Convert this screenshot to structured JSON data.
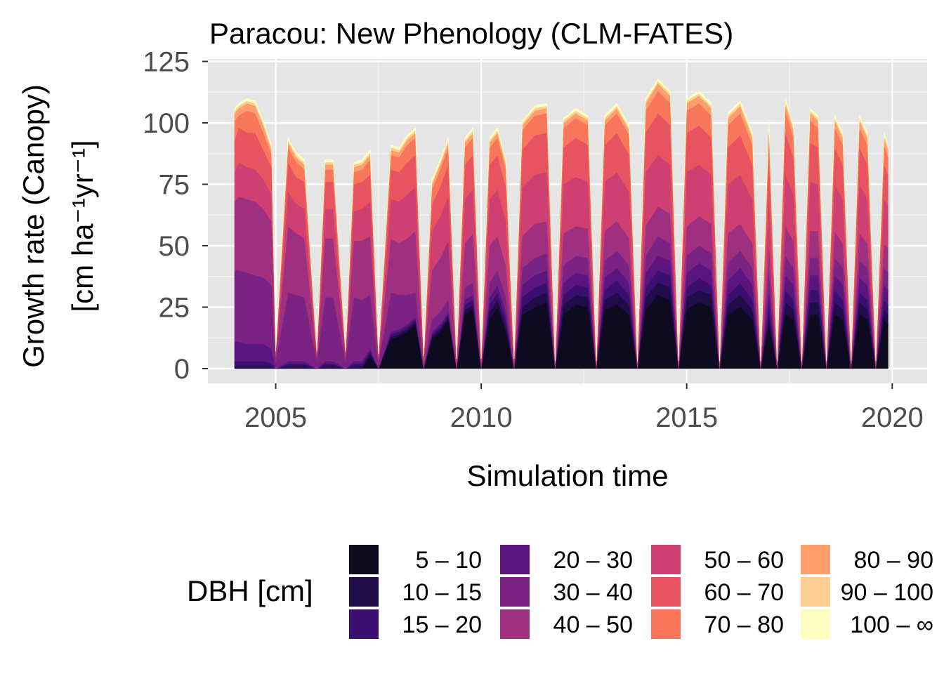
{
  "chart_data": {
    "type": "area",
    "stacked": true,
    "title": "Paracou: New Phenology (CLM-FATES)",
    "xlabel": "Simulation time",
    "ylabel_line1": "Growth rate (Canopy)",
    "ylabel_line2": "[cm ha⁻¹yr⁻¹]",
    "xlim": [
      2003.35,
      2020.85
    ],
    "ylim": [
      -6,
      126
    ],
    "x_ticks": [
      2005,
      2010,
      2015,
      2020
    ],
    "x_tick_labels": [
      "2005",
      "2010",
      "2015",
      "2020"
    ],
    "y_ticks": [
      0,
      25,
      50,
      75,
      100,
      125
    ],
    "y_tick_labels": [
      "0",
      "25",
      "50",
      "75",
      "100",
      "125"
    ],
    "grid": true,
    "background": "#e5e5e5",
    "legend_title": "DBH [cm]",
    "legend_position": "bottom",
    "x": [
      2004.0,
      2004.1,
      2004.3,
      2004.5,
      2004.7,
      2004.9,
      2005.0,
      2005.3,
      2005.5,
      2005.7,
      2006.0,
      2006.2,
      2006.4,
      2006.7,
      2006.9,
      2007.1,
      2007.3,
      2007.5,
      2007.8,
      2008.0,
      2008.2,
      2008.4,
      2008.6,
      2008.8,
      2009.0,
      2009.2,
      2009.4,
      2009.6,
      2009.8,
      2010.0,
      2010.2,
      2010.4,
      2010.6,
      2010.8,
      2011.0,
      2011.3,
      2011.6,
      2011.8,
      2012.0,
      2012.3,
      2012.6,
      2012.8,
      2013.0,
      2013.3,
      2013.6,
      2013.8,
      2014.0,
      2014.3,
      2014.6,
      2014.8,
      2015.0,
      2015.3,
      2015.6,
      2015.8,
      2016.0,
      2016.3,
      2016.6,
      2016.8,
      2017.0,
      2017.2,
      2017.4,
      2017.6,
      2017.8,
      2018.0,
      2018.2,
      2018.4,
      2018.6,
      2018.8,
      2019.0,
      2019.2,
      2019.4,
      2019.6,
      2019.8,
      2019.9
    ],
    "series": [
      {
        "name": "5 – 10",
        "color": "#0e0a20",
        "values": [
          0,
          0,
          0,
          0,
          0,
          0,
          0,
          0,
          0,
          0,
          0,
          0,
          0,
          0,
          0,
          0,
          5,
          0,
          12,
          13,
          15,
          18,
          0,
          12,
          15,
          20,
          0,
          22,
          24,
          0,
          20,
          25,
          15,
          0,
          22,
          25,
          27,
          0,
          22,
          26,
          25,
          0,
          24,
          26,
          22,
          0,
          24,
          30,
          28,
          0,
          24,
          27,
          25,
          0,
          22,
          25,
          20,
          0,
          18,
          0,
          22,
          20,
          0,
          22,
          22,
          0,
          22,
          20,
          0,
          22,
          20,
          0,
          20,
          18
        ]
      },
      {
        "name": "10 – 15",
        "color": "#1f0c48",
        "values": [
          1,
          1,
          1,
          1,
          1,
          1,
          0,
          1,
          1,
          1,
          0,
          1,
          1,
          0,
          1,
          1,
          1,
          0,
          1,
          1,
          1,
          1,
          0,
          1,
          1,
          1,
          0,
          2,
          2,
          0,
          3,
          3,
          2,
          0,
          3,
          4,
          4,
          0,
          4,
          4,
          4,
          0,
          4,
          5,
          4,
          0,
          5,
          5,
          5,
          0,
          5,
          5,
          5,
          0,
          4,
          5,
          4,
          0,
          4,
          0,
          5,
          4,
          0,
          5,
          5,
          0,
          5,
          4,
          0,
          5,
          4,
          0,
          4,
          4
        ]
      },
      {
        "name": "15 – 20",
        "color": "#3b0f70",
        "values": [
          2,
          2,
          2,
          2,
          2,
          1,
          0,
          1,
          1,
          1,
          0,
          1,
          1,
          0,
          1,
          1,
          1,
          0,
          1,
          1,
          1,
          1,
          0,
          1,
          1,
          1,
          0,
          2,
          2,
          0,
          3,
          3,
          3,
          0,
          4,
          4,
          4,
          0,
          4,
          4,
          4,
          0,
          4,
          5,
          4,
          0,
          4,
          5,
          5,
          0,
          4,
          5,
          4,
          0,
          4,
          5,
          4,
          0,
          4,
          0,
          5,
          4,
          0,
          5,
          5,
          0,
          5,
          4,
          0,
          4,
          4,
          0,
          4,
          4
        ]
      },
      {
        "name": "20 – 30",
        "color": "#5a167e",
        "values": [
          8,
          8,
          7,
          7,
          7,
          6,
          0,
          1,
          1,
          1,
          0,
          1,
          1,
          0,
          1,
          1,
          1,
          0,
          1,
          1,
          1,
          1,
          0,
          1,
          1,
          1,
          0,
          2,
          2,
          0,
          3,
          3,
          3,
          0,
          5,
          5,
          5,
          0,
          5,
          5,
          5,
          0,
          5,
          5,
          5,
          0,
          6,
          6,
          6,
          0,
          6,
          6,
          6,
          0,
          6,
          6,
          6,
          0,
          6,
          0,
          6,
          6,
          0,
          6,
          6,
          0,
          6,
          6,
          0,
          6,
          6,
          0,
          6,
          6
        ]
      },
      {
        "name": "30 – 40",
        "color": "#7b2382",
        "values": [
          29,
          29,
          29,
          28,
          27,
          26,
          3,
          28,
          27,
          26,
          3,
          26,
          26,
          3,
          26,
          25,
          22,
          2,
          16,
          14,
          12,
          10,
          1,
          5,
          5,
          5,
          0,
          5,
          5,
          0,
          6,
          6,
          6,
          0,
          7,
          7,
          7,
          0,
          7,
          7,
          7,
          0,
          7,
          7,
          7,
          0,
          7,
          8,
          7,
          0,
          7,
          7,
          7,
          0,
          7,
          7,
          7,
          0,
          8,
          0,
          8,
          7,
          0,
          7,
          7,
          0,
          7,
          7,
          0,
          7,
          7,
          0,
          7,
          7
        ]
      },
      {
        "name": "40 – 50",
        "color": "#9f2f7f",
        "values": [
          28,
          30,
          30,
          30,
          28,
          26,
          2,
          27,
          25,
          24,
          2,
          24,
          24,
          2,
          23,
          24,
          24,
          2,
          22,
          21,
          23,
          25,
          2,
          20,
          22,
          24,
          2,
          18,
          20,
          2,
          15,
          14,
          13,
          2,
          13,
          14,
          13,
          1,
          13,
          12,
          12,
          1,
          12,
          12,
          11,
          1,
          12,
          12,
          12,
          1,
          12,
          12,
          12,
          1,
          12,
          11,
          10,
          1,
          11,
          1,
          12,
          11,
          1,
          11,
          11,
          1,
          11,
          10,
          1,
          11,
          10,
          1,
          10,
          10
        ]
      },
      {
        "name": "50 – 60",
        "color": "#cd4071",
        "values": [
          12,
          14,
          13,
          13,
          12,
          11,
          1,
          14,
          12,
          12,
          1,
          12,
          12,
          1,
          12,
          13,
          14,
          1,
          16,
          17,
          18,
          18,
          1,
          16,
          17,
          18,
          1,
          18,
          18,
          1,
          19,
          19,
          18,
          1,
          20,
          20,
          20,
          1,
          20,
          20,
          19,
          1,
          20,
          20,
          19,
          1,
          22,
          21,
          20,
          1,
          22,
          21,
          20,
          1,
          20,
          20,
          18,
          1,
          20,
          1,
          21,
          19,
          1,
          20,
          19,
          1,
          19,
          18,
          1,
          20,
          18,
          1,
          18,
          17
        ]
      },
      {
        "name": "60 – 70",
        "color": "#e85362",
        "values": [
          13,
          14,
          14,
          15,
          12,
          11,
          1,
          12,
          11,
          11,
          1,
          11,
          11,
          1,
          11,
          11,
          11,
          1,
          12,
          12,
          13,
          13,
          1,
          11,
          12,
          13,
          1,
          14,
          14,
          1,
          14,
          14,
          14,
          1,
          15,
          16,
          16,
          1,
          15,
          16,
          15,
          1,
          15,
          16,
          15,
          1,
          16,
          17,
          16,
          1,
          16,
          16,
          15,
          1,
          15,
          16,
          14,
          1,
          16,
          1,
          17,
          15,
          1,
          16,
          15,
          1,
          15,
          14,
          1,
          15,
          14,
          1,
          14,
          13
        ]
      },
      {
        "name": "70 – 80",
        "color": "#f8765c",
        "values": [
          8,
          5,
          9,
          8,
          7,
          5,
          0,
          6,
          6,
          5,
          0,
          5,
          5,
          0,
          5,
          5,
          6,
          0,
          6,
          6,
          7,
          7,
          0,
          6,
          7,
          7,
          0,
          7,
          7,
          0,
          7,
          7,
          7,
          0,
          8,
          8,
          8,
          0,
          8,
          8,
          8,
          0,
          8,
          8,
          8,
          0,
          9,
          9,
          9,
          0,
          9,
          9,
          9,
          0,
          9,
          9,
          8,
          0,
          9,
          0,
          9,
          8,
          0,
          9,
          8,
          0,
          8,
          8,
          0,
          8,
          8,
          0,
          8,
          7
        ]
      },
      {
        "name": "80 – 90",
        "color": "#fe9f6d",
        "values": [
          3,
          3,
          3,
          3,
          3,
          2,
          0,
          2,
          2,
          2,
          0,
          2,
          2,
          0,
          2,
          2,
          2,
          0,
          2,
          2,
          2,
          2,
          0,
          2,
          2,
          2,
          0,
          2,
          2,
          0,
          2,
          2,
          2,
          0,
          2,
          2,
          2,
          0,
          2,
          2,
          2,
          0,
          2,
          2,
          2,
          0,
          3,
          3,
          3,
          0,
          3,
          3,
          3,
          0,
          3,
          3,
          3,
          0,
          3,
          0,
          3,
          3,
          0,
          3,
          3,
          0,
          3,
          3,
          0,
          3,
          3,
          0,
          3,
          3
        ]
      },
      {
        "name": "90 – 100",
        "color": "#fecf92",
        "values": [
          1,
          1,
          1,
          1,
          1,
          1,
          0,
          1,
          1,
          1,
          0,
          1,
          1,
          0,
          1,
          1,
          1,
          0,
          1,
          1,
          1,
          1,
          0,
          1,
          1,
          1,
          0,
          1,
          1,
          0,
          1,
          1,
          1,
          0,
          1,
          1,
          1,
          0,
          1,
          1,
          1,
          0,
          1,
          1,
          1,
          0,
          1,
          1,
          1,
          0,
          1,
          1,
          1,
          0,
          1,
          1,
          1,
          0,
          1,
          0,
          1,
          1,
          0,
          1,
          1,
          0,
          1,
          1,
          0,
          1,
          1,
          0,
          1,
          1
        ]
      },
      {
        "name": "100 – ∞",
        "color": "#fcfdbf",
        "values": [
          1,
          1,
          1,
          1,
          1,
          1,
          0,
          1,
          1,
          1,
          0,
          1,
          1,
          0,
          1,
          1,
          1,
          0,
          1,
          1,
          1,
          1,
          0,
          1,
          1,
          1,
          0,
          1,
          1,
          0,
          1,
          1,
          1,
          0,
          1,
          1,
          1,
          0,
          1,
          1,
          1,
          0,
          1,
          1,
          1,
          0,
          1,
          1,
          1,
          0,
          1,
          1,
          1,
          0,
          1,
          1,
          1,
          0,
          1,
          0,
          1,
          1,
          0,
          1,
          1,
          0,
          1,
          1,
          0,
          1,
          1,
          0,
          1,
          1
        ]
      }
    ]
  }
}
